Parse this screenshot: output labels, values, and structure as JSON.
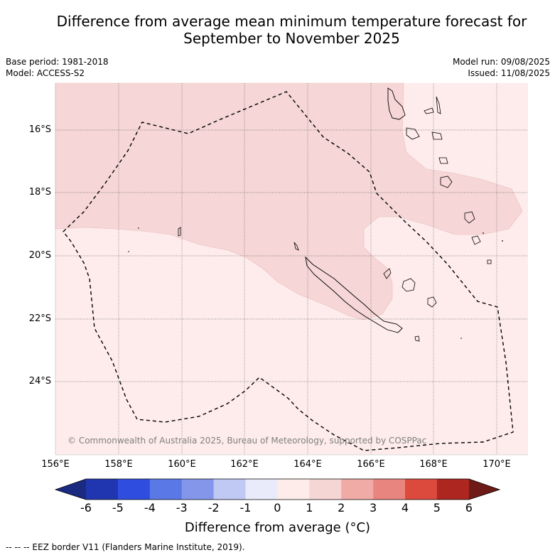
{
  "title_line1": "Difference from average mean minimum temperature forecast for",
  "title_line2": "September to November 2025",
  "base_period": "Base period: 1981-2018",
  "model": "Model: ACCESS-S2",
  "model_run": "Model run: 09/08/2025",
  "issued": "Issued: 11/08/2025",
  "copyright": "© Commonwealth of Australia 2025, Bureau of Meteorology, supported by COSPPac",
  "lat_labels": [
    "16°S",
    "18°S",
    "20°S",
    "22°S",
    "24°S"
  ],
  "lon_labels": [
    "156°E",
    "158°E",
    "160°E",
    "162°E",
    "164°E",
    "166°E",
    "168°E",
    "170°E"
  ],
  "colorbar": {
    "ticks": [
      "-6",
      "-5",
      "-4",
      "-3",
      "-2",
      "-1",
      "0",
      "1",
      "2",
      "3",
      "4",
      "5",
      "6"
    ],
    "colors": [
      "#1a2a80",
      "#2036b0",
      "#2f4ee0",
      "#5a78e6",
      "#8496ea",
      "#c0c8f4",
      "#e9ebfa",
      "#fdecea",
      "#f6d5d5",
      "#f0aba6",
      "#e8857e",
      "#dc4a3e",
      "#ad2620",
      "#6e1a17"
    ],
    "label_text": "Difference from average (",
    "label_unit": "°C",
    "label_close": ")"
  },
  "legend": "--  --  -- EEZ border V11 (Flanders Marine Institute, 2019).",
  "map_colors": {
    "light": "#fdeceb",
    "medium": "#f6d6d6"
  }
}
